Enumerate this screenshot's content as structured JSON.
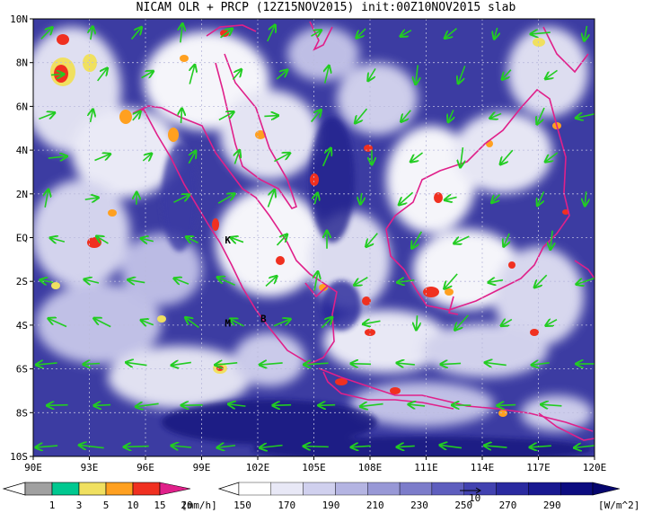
{
  "title": "NICAM OLR + PRCP (12Z15NOV2015) init:00Z10NOV2015 slab",
  "map": {
    "lon_labels": [
      "90E",
      "93E",
      "96E",
      "99E",
      "102E",
      "105E",
      "108E",
      "111E",
      "114E",
      "117E",
      "120E"
    ],
    "lat_labels": [
      "10N",
      "8N",
      "6N",
      "4N",
      "2N",
      "EQ",
      "2S",
      "4S",
      "6S",
      "8S",
      "10S"
    ],
    "place_labels": [
      {
        "text": "K",
        "lon": 100.4,
        "lat": -0.1
      },
      {
        "text": "M",
        "lon": 100.4,
        "lat": -3.9
      },
      {
        "text": "B",
        "lon": 102.3,
        "lat": -3.7
      }
    ],
    "colors": {
      "ocean_deep": "#1d1d8c",
      "ocean_mid": "#4a4aaa",
      "land_line": "#e0208a",
      "wind": "#22cc22",
      "grid": "#bbbbdd"
    }
  },
  "precip_bar": {
    "labels": [
      "1",
      "3",
      "5",
      "10",
      "15",
      "20"
    ],
    "unit": "[mm/h]",
    "colors": [
      "#a0a0a0",
      "#00c890",
      "#f0e060",
      "#ffa020",
      "#f03020",
      "#e0208a"
    ]
  },
  "olr_bar": {
    "labels": [
      "150",
      "170",
      "190",
      "210",
      "230",
      "250",
      "270",
      "290"
    ],
    "unit": "[W/m^2]",
    "colors": [
      "#ffffff",
      "#e8e8f6",
      "#d0d0ee",
      "#b4b4e2",
      "#9898d6",
      "#7c7cca",
      "#5e5ebe",
      "#4242b0",
      "#2a2aa0",
      "#181890",
      "#0c0c80"
    ]
  }
}
